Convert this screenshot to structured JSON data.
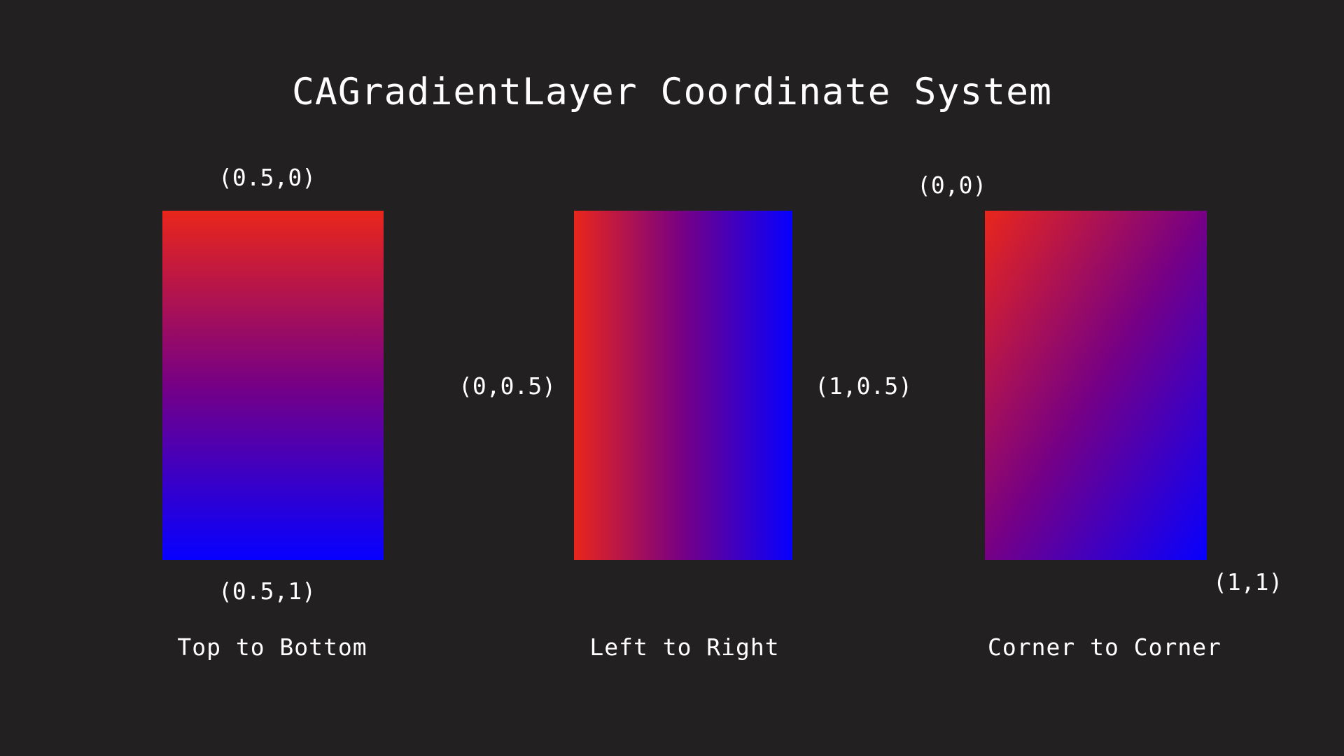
{
  "title": "CAGradientLayer Coordinate System",
  "colors": {
    "background": "#232021",
    "gradient_start": "#e9261b",
    "gradient_mid": "#760085",
    "gradient_end": "#0600ff",
    "text": "#ffffff"
  },
  "panels": [
    {
      "caption": "Top to Bottom",
      "start_label": "(0.5,0)",
      "end_label": "(0.5,1)",
      "direction": "to bottom"
    },
    {
      "caption": "Left to Right",
      "start_label": "(0,0.5)",
      "end_label": "(1,0.5)",
      "direction": "to right"
    },
    {
      "caption": "Corner to Corner",
      "start_label": "(0,0)",
      "end_label": "(1,1)",
      "direction": "to bottom right"
    }
  ]
}
